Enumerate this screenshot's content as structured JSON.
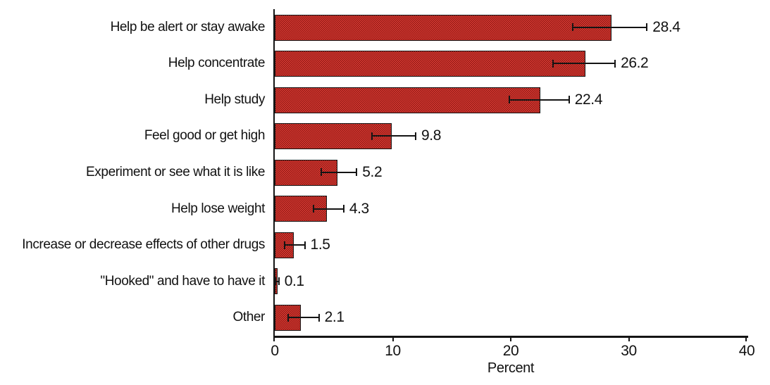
{
  "chart_data": {
    "type": "bar",
    "orientation": "horizontal",
    "title": "",
    "xlabel": "Percent",
    "xlim": [
      0,
      40
    ],
    "x_ticks": [
      0,
      10,
      20,
      30,
      40
    ],
    "grid": false,
    "legend": "none",
    "bar_color_base": "#e2423a",
    "bar_color_dither": "#8b1410",
    "axis_color": "#141414",
    "categories": [
      "Help be alert or stay awake",
      "Help concentrate",
      "Help study",
      "Feel good or get high",
      "Experiment or see what it is like",
      "Help lose weight",
      "Increase or decrease effects of other drugs",
      "\"Hooked\" and have to have it",
      "Other"
    ],
    "values": [
      28.4,
      26.2,
      22.4,
      9.8,
      5.2,
      4.3,
      1.5,
      0.1,
      2.1
    ],
    "value_labels": [
      "28.4",
      "26.2",
      "22.4",
      "9.8",
      "5.2",
      "4.3",
      "1.5",
      "0.1",
      "2.1"
    ],
    "error_low": [
      25.2,
      23.5,
      19.8,
      8.2,
      3.9,
      3.2,
      0.8,
      0.0,
      1.1
    ],
    "error_high": [
      31.6,
      28.9,
      25.0,
      12.0,
      7.0,
      5.9,
      2.6,
      0.4,
      3.8
    ]
  }
}
